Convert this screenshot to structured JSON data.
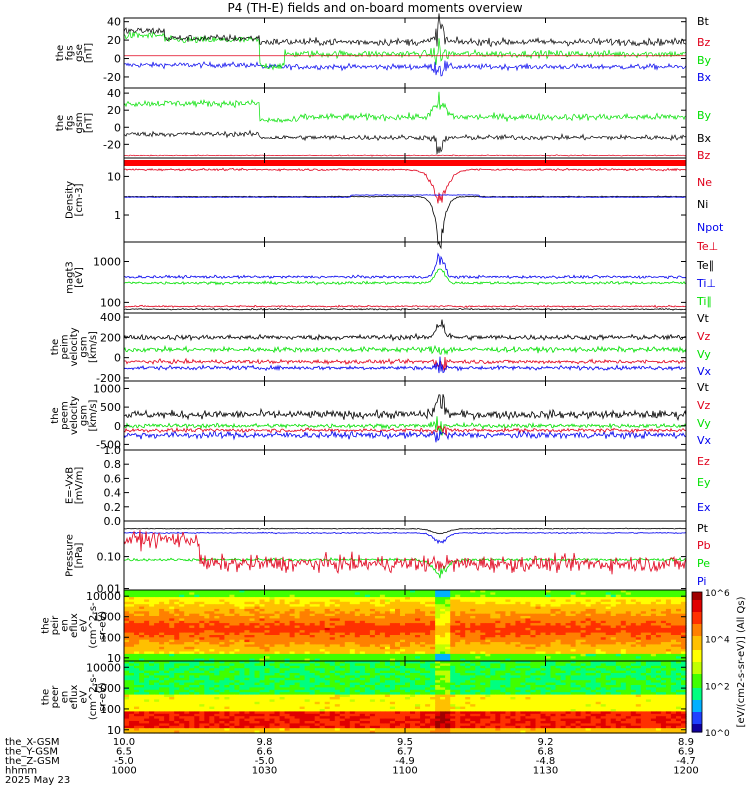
{
  "chart_data": {
    "type": "line",
    "title": "P4 (TH-E) fields and on-board moments overview",
    "colorbar_label": "[eV/(cm2-s-sr-eV)] (All Qs)",
    "colorbar_ticks": [
      "10^0",
      "10^2",
      "10^4",
      "10^6"
    ],
    "panels": [
      {
        "name": "fgs-gse",
        "ylabel": [
          "the",
          "fgs",
          "gse",
          "[nT]"
        ],
        "yticks": [
          "40",
          "20",
          "0",
          "-20"
        ],
        "ylim": [
          -32,
          44
        ],
        "log": false,
        "series": [
          {
            "name": "Bt",
            "color": "#000000"
          },
          {
            "name": "Bz",
            "color": "#e0001b"
          },
          {
            "name": "By",
            "color": "#00e000"
          },
          {
            "name": "Bx",
            "color": "#0000ee"
          }
        ]
      },
      {
        "name": "fgs-gsm",
        "ylabel": [
          "the",
          "fgs",
          "gsm",
          "[nT]"
        ],
        "yticks": [
          "40",
          "20",
          "0",
          "-20"
        ],
        "ylim": [
          -36,
          46
        ],
        "log": false,
        "series": [
          {
            "name": "By",
            "color": "#00e000"
          },
          {
            "name": "Bx",
            "color": "#000000"
          },
          {
            "name": "Bz",
            "color": "#e0001b"
          }
        ]
      },
      {
        "name": "density",
        "ylabel": [
          "Density",
          "[cm-3]"
        ],
        "yticks": [
          "10",
          "1"
        ],
        "ylim": [
          0.2,
          30
        ],
        "log": true,
        "series": [
          {
            "name": "Ne",
            "color": "#e0001b"
          },
          {
            "name": "Ni",
            "color": "#000000"
          },
          {
            "name": "Npot",
            "color": "#0000ee"
          }
        ]
      },
      {
        "name": "temperature",
        "ylabel": [
          "magt3",
          "[eV]"
        ],
        "yticks": [
          "1000",
          "100"
        ],
        "ylim": [
          55,
          3000
        ],
        "log": true,
        "series": [
          {
            "name": "Te⊥",
            "color": "#e0001b"
          },
          {
            "name": "Te∥",
            "color": "#000000"
          },
          {
            "name": "Ti⊥",
            "color": "#0000ee"
          },
          {
            "name": "Ti∥",
            "color": "#00e000"
          }
        ]
      },
      {
        "name": "peim-velocity",
        "ylabel": [
          "the",
          "peim",
          "velocity",
          "gsm",
          "[km/s]"
        ],
        "yticks": [
          "400",
          "200",
          "0",
          "-200"
        ],
        "ylim": [
          -230,
          440
        ],
        "log": false,
        "series": [
          {
            "name": "Vt",
            "color": "#000000"
          },
          {
            "name": "Vz",
            "color": "#e0001b"
          },
          {
            "name": "Vy",
            "color": "#00e000"
          },
          {
            "name": "Vx",
            "color": "#0000ee"
          }
        ]
      },
      {
        "name": "peem-velocity",
        "ylabel": [
          "the",
          "peem",
          "velocity",
          "gsm",
          "[km/s]"
        ],
        "yticks": [
          "1000",
          "500",
          "0",
          "-500"
        ],
        "ylim": [
          -650,
          1200
        ],
        "log": false,
        "series": [
          {
            "name": "Vt",
            "color": "#000000"
          },
          {
            "name": "Vz",
            "color": "#e0001b"
          },
          {
            "name": "Vy",
            "color": "#00e000"
          },
          {
            "name": "Vx",
            "color": "#0000ee"
          }
        ]
      },
      {
        "name": "e-field",
        "ylabel": [
          "E=-VxB",
          "[mV/m]"
        ],
        "yticks": [
          "1.0",
          "0.8",
          "0.6",
          "0.4",
          "0.2",
          "0.0"
        ],
        "ylim": [
          0,
          1
        ],
        "log": false,
        "series": [
          {
            "name": "Ez",
            "color": "#e0001b"
          },
          {
            "name": "Ey",
            "color": "#00e000"
          },
          {
            "name": "Ex",
            "color": "#0000ee"
          }
        ]
      },
      {
        "name": "pressure",
        "ylabel": [
          "Pressure",
          "[nPa]"
        ],
        "yticks": [
          "0.10",
          "0.01"
        ],
        "ylim": [
          0.009,
          1.3
        ],
        "log": true,
        "series": [
          {
            "name": "Pt",
            "color": "#000000"
          },
          {
            "name": "Pb",
            "color": "#e0001b"
          },
          {
            "name": "Pe",
            "color": "#00e000"
          },
          {
            "name": "Pi",
            "color": "#0000ee"
          }
        ]
      },
      {
        "name": "peir-eflux",
        "ylabel": [
          "the",
          "peir",
          "en",
          "eflux",
          "eV",
          "(cm^2-s-",
          "sr-eV)"
        ],
        "yticks": [
          "10000",
          "1000",
          "100",
          "10"
        ],
        "ylim": [
          7,
          20000
        ],
        "log": true,
        "series": []
      },
      {
        "name": "peer-eflux",
        "ylabel": [
          "the",
          "peer",
          "en",
          "eflux",
          "eV",
          "(cm^2-s-",
          "sr-eV)"
        ],
        "yticks": [
          "10000",
          "1000",
          "100",
          "10"
        ],
        "ylim": [
          7,
          20000
        ],
        "log": true,
        "series": []
      }
    ],
    "x_axis": {
      "row_labels": [
        "the_X-GSM",
        "the_Y-GSM",
        "the_Z-GSM",
        "hhmm",
        "2025 May 23"
      ],
      "ticks": [
        {
          "x": "10.0",
          "y": "6.5",
          "z": "-5.0",
          "hhmm": "1000"
        },
        {
          "x": "9.8",
          "y": "6.6",
          "z": "-5.0",
          "hhmm": "1030"
        },
        {
          "x": "9.5",
          "y": "6.7",
          "z": "-4.9",
          "hhmm": "1100"
        },
        {
          "x": "9.2",
          "y": "6.8",
          "z": "-4.8",
          "hhmm": "1130"
        },
        {
          "x": "8.9",
          "y": "6.9",
          "z": "-4.7",
          "hhmm": "1200"
        }
      ]
    }
  }
}
